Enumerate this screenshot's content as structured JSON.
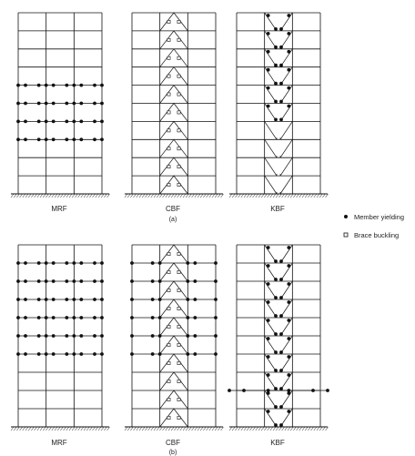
{
  "panels": [
    {
      "caption": "(a)",
      "frames": [
        {
          "label": "MRF",
          "type": "MRF",
          "hinge_levels": [
            4,
            5,
            6,
            7
          ],
          "hinge_positions": "all",
          "buckling_stories": []
        },
        {
          "label": "CBF",
          "type": "CBF",
          "hinge_levels": [],
          "hinge_positions": "all",
          "buckling_stories": [
            1,
            2,
            3,
            4,
            5,
            6,
            7,
            8,
            9,
            10
          ]
        },
        {
          "label": "KBF",
          "type": "KBF",
          "hinge_levels": [
            0,
            1,
            2,
            3,
            4,
            5
          ],
          "hinge_positions": "brace_ends",
          "buckling_stories": []
        }
      ]
    },
    {
      "caption": "(b)",
      "frames": [
        {
          "label": "MRF",
          "type": "MRF",
          "hinge_levels": [
            1,
            2,
            3,
            4,
            5,
            6
          ],
          "hinge_positions": "all",
          "buckling_stories": []
        },
        {
          "label": "CBF",
          "type": "CBF",
          "hinge_levels": [
            1,
            2,
            3,
            4,
            5,
            6
          ],
          "hinge_positions": "all",
          "buckling_stories": [
            1,
            2,
            3,
            4,
            5,
            6,
            7,
            8,
            9,
            10
          ]
        },
        {
          "label": "KBF",
          "type": "KBF",
          "hinge_levels": [
            0,
            1,
            2,
            3,
            4,
            5,
            6,
            7,
            8,
            9
          ],
          "hinge_positions": "brace_ends",
          "beam_hinge_levels": [
            2
          ],
          "buckling_stories": []
        }
      ]
    }
  ],
  "legend": {
    "member_yielding": "Member yielding",
    "brace_buckling": "Brace buckling"
  },
  "style": {
    "line_color": "#111111",
    "dot_color": "#111111",
    "square_fill": "#ffffff"
  }
}
